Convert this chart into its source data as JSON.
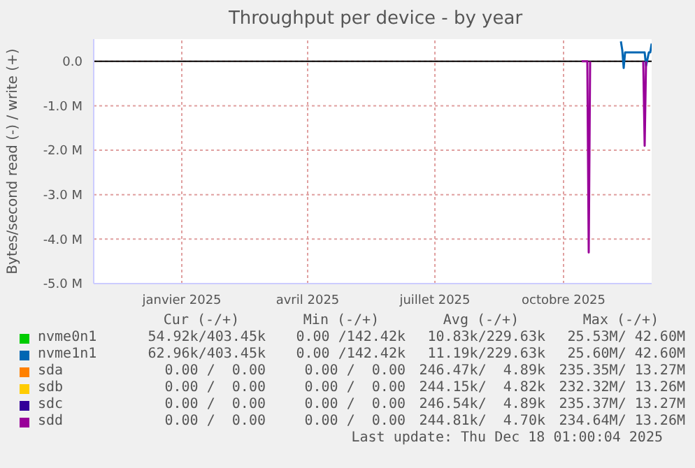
{
  "chart_data": {
    "type": "line",
    "title": "Throughput per device - by year",
    "ylabel": "Bytes/second read (-) / write (+)",
    "x": [
      "2025-10-29",
      "2025-11-02",
      "2025-11-03",
      "2025-11-04",
      "2025-11-25",
      "2025-11-26",
      "2025-11-27",
      "2025-11-28",
      "2025-11-29",
      "2025-12-12",
      "2025-12-13",
      "2025-12-14",
      "2025-12-16",
      "2025-12-17",
      "2025-12-18"
    ],
    "series": [
      {
        "name": "nvme0n1",
        "color": "#00cc00",
        "values": [
          null,
          null,
          null,
          null,
          null,
          null,
          null,
          null,
          null,
          null,
          null,
          null,
          null,
          null,
          null
        ]
      },
      {
        "name": "nvme1n1",
        "color": "#0066b3",
        "values": [
          null,
          null,
          null,
          null,
          null,
          450000,
          250000,
          -150000,
          200000,
          200000,
          200000,
          -100000,
          200000,
          200000,
          400000
        ]
      },
      {
        "name": "sda",
        "color": "#ff8000",
        "values": [
          null,
          null,
          null,
          null,
          null,
          null,
          null,
          null,
          null,
          null,
          null,
          null,
          null,
          null,
          null
        ]
      },
      {
        "name": "sdb",
        "color": "#ffcc00",
        "values": [
          null,
          null,
          null,
          null,
          null,
          null,
          null,
          null,
          null,
          null,
          null,
          null,
          null,
          null,
          null
        ]
      },
      {
        "name": "sdc",
        "color": "#330099",
        "values": [
          null,
          null,
          null,
          null,
          null,
          null,
          null,
          null,
          null,
          null,
          null,
          null,
          null,
          null,
          null
        ]
      },
      {
        "name": "sdd",
        "color": "#990099",
        "values": [
          0,
          0,
          -4300000,
          0,
          null,
          null,
          null,
          null,
          null,
          0,
          -1900000,
          0,
          null,
          null,
          null
        ]
      }
    ],
    "xlim": [
      "2024-11-14",
      "2025-12-18"
    ],
    "xticks": [
      {
        "value": "2025-01-16",
        "label": "janvier 2025"
      },
      {
        "value": "2025-04-16",
        "label": "avril 2025"
      },
      {
        "value": "2025-07-16",
        "label": "juillet 2025"
      },
      {
        "value": "2025-10-16",
        "label": "octobre 2025"
      }
    ],
    "ylim": [
      -5000000,
      500000
    ],
    "yticks": [
      {
        "value": 0,
        "label": "0.0"
      },
      {
        "value": -1000000,
        "label": "-1.0 M"
      },
      {
        "value": -2000000,
        "label": "-2.0 M"
      },
      {
        "value": -3000000,
        "label": "-3.0 M"
      },
      {
        "value": -4000000,
        "label": "-4.0 M"
      },
      {
        "value": -5000000,
        "label": "-5.0 M"
      }
    ],
    "ref_lines": [
      {
        "axis": "y",
        "value": 0,
        "color": "#000000"
      }
    ],
    "grid": true,
    "legend": "bottom",
    "annotations": [
      "Cur (-/+)",
      "Min (-/+)",
      "Avg (-/+)",
      "Max (-/+)",
      "54.92k/403.45k",
      "0.00 /142.42k",
      "10.83k/229.63k",
      "25.53M/ 42.60M",
      "62.96k/403.45k",
      "0.00 /142.42k",
      "11.19k/229.63k",
      "25.60M/ 42.60M",
      "0.00 /  0.00",
      "0.00 /  0.00",
      "246.47k/  4.89k",
      "235.35M/ 13.27M",
      "0.00 /  0.00",
      "0.00 /  0.00",
      "244.15k/  4.82k",
      "232.32M/ 13.26M",
      "0.00 /  0.00",
      "0.00 /  0.00",
      "246.54k/  4.89k",
      "235.37M/ 13.27M",
      "0.00 /  0.00",
      "0.00 /  0.00",
      "244.81k/  4.70k",
      "234.64M/ 13.26M",
      "Last update: Thu Dec 18 01:00:04 2025"
    ]
  }
}
